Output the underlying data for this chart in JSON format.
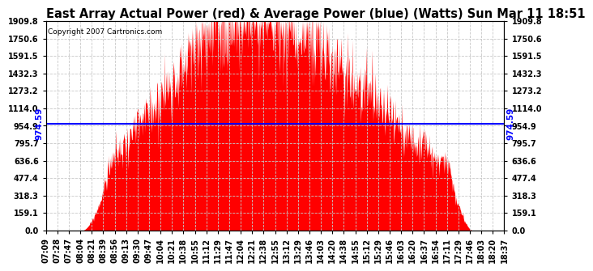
{
  "title": "East Array Actual Power (red) & Average Power (blue) (Watts) Sun Mar 11 18:51",
  "copyright": "Copyright 2007 Cartronics.com",
  "avg_power": 974.59,
  "y_max": 1909.8,
  "y_min": 0.0,
  "y_ticks": [
    0.0,
    159.1,
    318.3,
    477.4,
    636.6,
    795.7,
    954.9,
    1114.0,
    1273.2,
    1432.3,
    1591.5,
    1750.6,
    1909.8
  ],
  "x_labels": [
    "07:09",
    "07:28",
    "07:47",
    "08:04",
    "08:21",
    "08:39",
    "08:56",
    "09:13",
    "09:30",
    "09:47",
    "10:04",
    "10:21",
    "10:38",
    "10:55",
    "11:12",
    "11:29",
    "11:47",
    "12:04",
    "12:21",
    "12:38",
    "12:55",
    "13:12",
    "13:29",
    "13:46",
    "14:03",
    "14:20",
    "14:38",
    "14:55",
    "15:12",
    "15:29",
    "15:46",
    "16:03",
    "16:20",
    "16:37",
    "16:54",
    "17:11",
    "17:29",
    "17:46",
    "18:03",
    "18:20",
    "18:37"
  ],
  "background_color": "#ffffff",
  "plot_bg_color": "#ffffff",
  "grid_color": "#c8c8c8",
  "fill_color": "#ff0000",
  "line_color": "#0000ff",
  "title_fontsize": 10.5,
  "tick_fontsize": 7,
  "avg_label_fontsize": 7.5,
  "copyright_fontsize": 6.5
}
